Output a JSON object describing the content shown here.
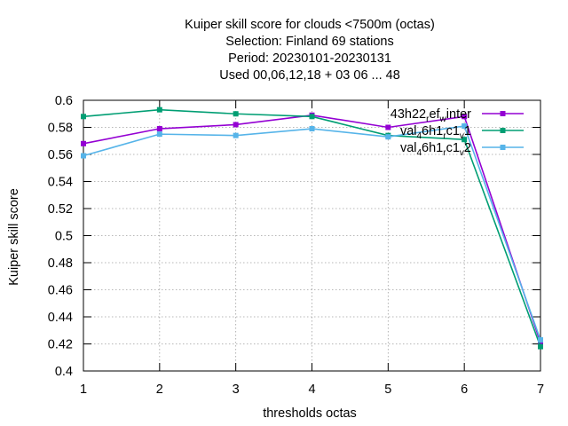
{
  "chart_data": {
    "type": "line",
    "title_lines": [
      "Kuiper skill score  for clouds <7500m (octas)",
      "Selection: Finland      69 stations",
      "Period: 20230101-20230131",
      "Used  00,06,12,18  + 03 06 ... 48"
    ],
    "xlabel": "thresholds octas",
    "ylabel": "Kuiper skill score",
    "xlim": [
      1,
      7
    ],
    "ylim": [
      0.4,
      0.6
    ],
    "x_ticks": [
      1,
      2,
      3,
      4,
      5,
      6,
      7
    ],
    "y_ticks": [
      0.4,
      0.42,
      0.44,
      0.46,
      0.48,
      0.5,
      0.52,
      0.54,
      0.56,
      0.58,
      0.6
    ],
    "grid": true,
    "legend_position": "top-right",
    "x": [
      1,
      2,
      3,
      4,
      5,
      6,
      7
    ],
    "series": [
      {
        "name": "43h22_ref_w_inter",
        "legend_parts": [
          "43h22",
          "r",
          "ef",
          "w",
          "inter"
        ],
        "color": "#9400d3",
        "marker": "square",
        "values": [
          0.568,
          0.579,
          0.582,
          0.589,
          0.58,
          0.588,
          0.421
        ]
      },
      {
        "name": "val_4 6h1_rc1_v_1",
        "legend_parts": [
          "val",
          "4",
          "6h1",
          "r",
          "c1",
          "v",
          "1"
        ],
        "color": "#009e73",
        "marker": "square",
        "values": [
          0.588,
          0.593,
          0.59,
          0.588,
          0.574,
          0.571,
          0.418
        ]
      },
      {
        "name": "val_4 6h1_rc1_v_2",
        "legend_parts": [
          "val",
          "4",
          "6h1",
          "r",
          "c1",
          "v",
          "2"
        ],
        "color": "#56b4e9",
        "marker": "square",
        "values": [
          0.559,
          0.575,
          0.574,
          0.579,
          0.573,
          0.581,
          0.423
        ]
      }
    ]
  }
}
